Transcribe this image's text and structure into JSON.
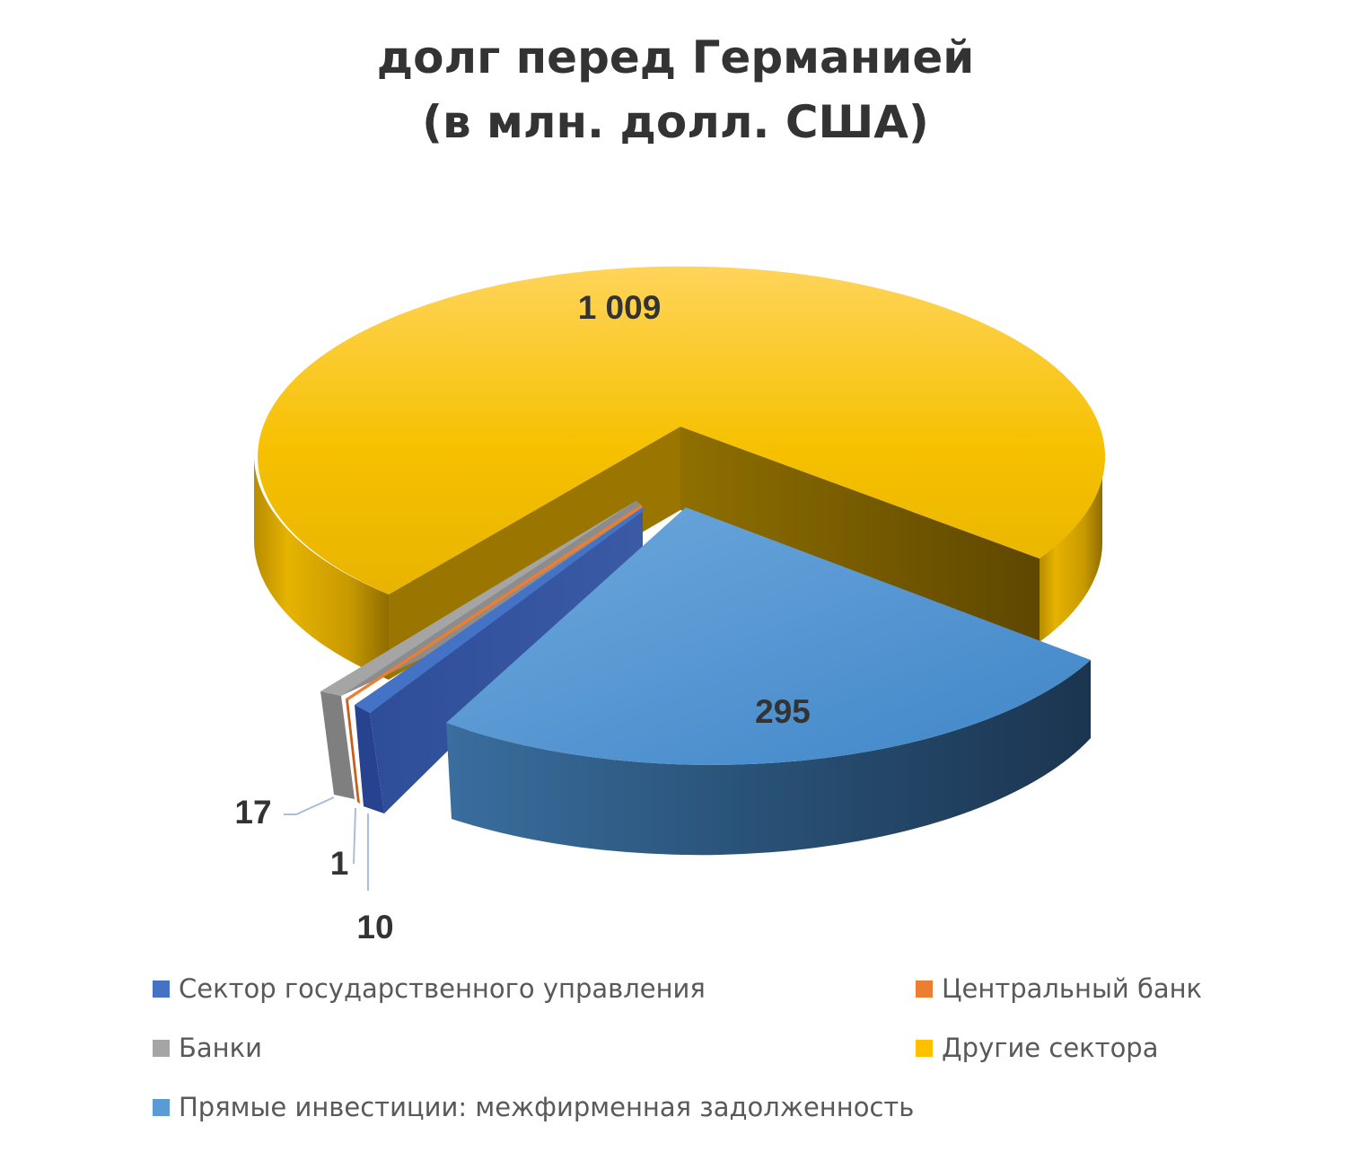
{
  "chart_data": {
    "type": "pie",
    "style": "3d-exploded",
    "title": [
      "долг перед Германией",
      "(в млн. долл. США)"
    ],
    "slices": [
      {
        "name": "Сектор государственного управления",
        "value": 10,
        "label": "10",
        "color": "#4472C4"
      },
      {
        "name": "Центральный банк",
        "value": 1,
        "label": "1",
        "color": "#ED7D31"
      },
      {
        "name": "Банки",
        "value": 17,
        "label": "17",
        "color": "#A5A5A5"
      },
      {
        "name": "Другие сектора",
        "value": 1009,
        "label": "1 009",
        "color": "#FFC000"
      },
      {
        "name": "Прямые инвестиции: межфирменная задолженность",
        "value": 295,
        "label": "295",
        "color": "#5B9BD5"
      }
    ],
    "legend_order": [
      "Сектор государственного управления",
      "Центральный банк",
      "Банки",
      "Другие сектора",
      "Прямые инвестиции: межфирменная задолженность"
    ],
    "legend_position": "bottom"
  }
}
